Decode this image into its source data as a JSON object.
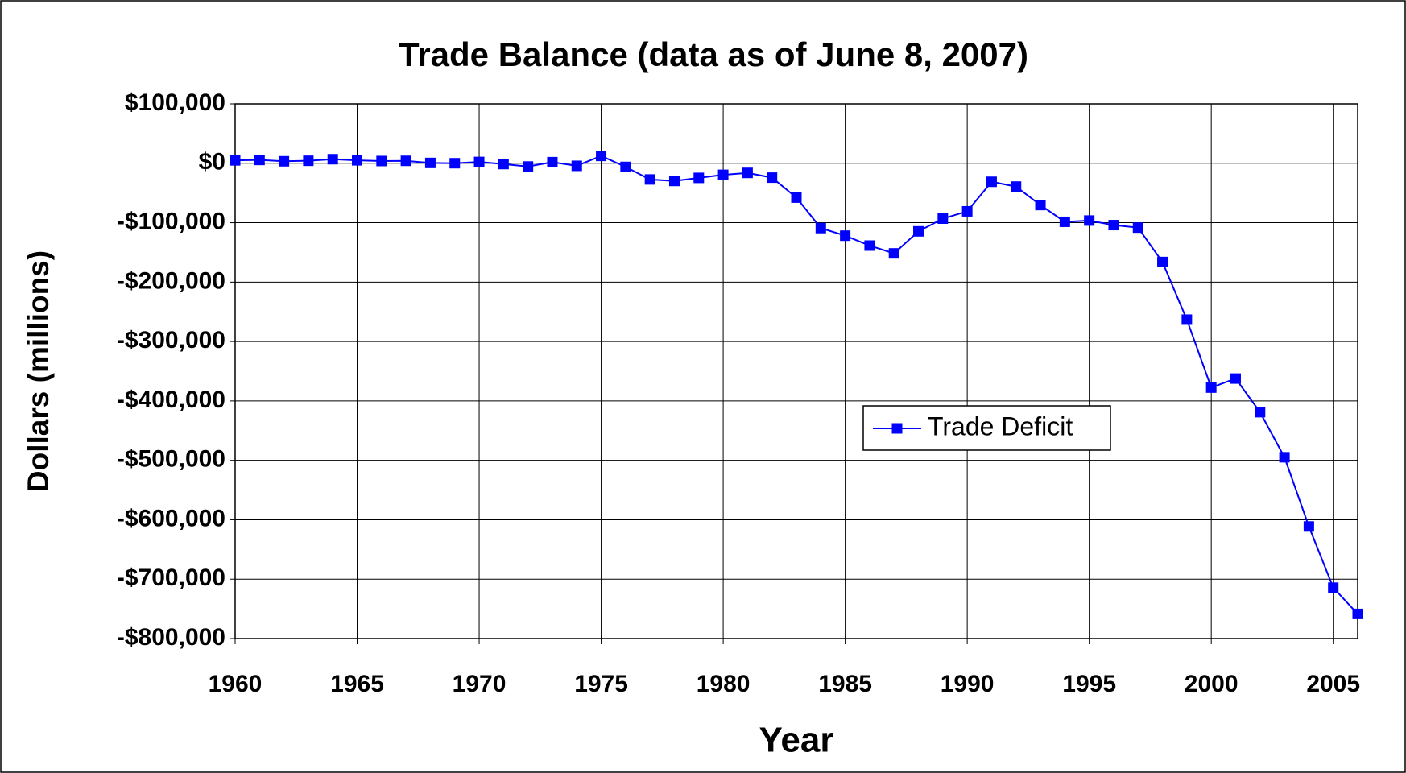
{
  "chart_data": {
    "type": "line",
    "title": "Trade Balance (data as of June 8, 2007)",
    "x_label": "Year",
    "y_label": "Dollars (millions)",
    "x": [
      1960,
      1961,
      1962,
      1963,
      1964,
      1965,
      1966,
      1967,
      1968,
      1969,
      1970,
      1971,
      1972,
      1973,
      1974,
      1975,
      1976,
      1977,
      1978,
      1979,
      1980,
      1981,
      1982,
      1983,
      1984,
      1985,
      1986,
      1987,
      1988,
      1989,
      1990,
      1991,
      1992,
      1993,
      1994,
      1995,
      1996,
      1997,
      1998,
      1999,
      2000,
      2001,
      2002,
      2003,
      2004,
      2005,
      2006
    ],
    "series": [
      {
        "name": "Trade Deficit",
        "color": "#0000ff",
        "values": [
          4892,
          5571,
          3387,
          4214,
          6831,
          4951,
          3817,
          4122,
          601,
          91,
          2254,
          -1303,
          -5443,
          1900,
          -4293,
          12404,
          -6082,
          -27246,
          -29763,
          -24565,
          -19407,
          -16172,
          -24156,
          -57767,
          -109072,
          -121880,
          -138538,
          -151684,
          -114566,
          -93141,
          -80864,
          -31135,
          -39212,
          -70311,
          -98493,
          -96384,
          -104065,
          -108273,
          -166140,
          -263160,
          -377559,
          -362339,
          -418955,
          -494814,
          -611296,
          -714371,
          -758522
        ]
      }
    ],
    "xlim": [
      1960,
      2006
    ],
    "xticks": [
      1960,
      1965,
      1970,
      1975,
      1980,
      1985,
      1990,
      1995,
      2000,
      2005
    ],
    "ylim": [
      -800000,
      100000
    ],
    "yticks": [
      {
        "value": -800000,
        "label": "-$800,000"
      },
      {
        "value": -700000,
        "label": "-$700,000"
      },
      {
        "value": -600000,
        "label": "-$600,000"
      },
      {
        "value": -500000,
        "label": "-$500,000"
      },
      {
        "value": -400000,
        "label": "-$400,000"
      },
      {
        "value": -300000,
        "label": "-$300,000"
      },
      {
        "value": -200000,
        "label": "-$200,000"
      },
      {
        "value": -100000,
        "label": "-$100,000"
      },
      {
        "value": 0,
        "label": "$0"
      },
      {
        "value": 100000,
        "label": "$100,000"
      }
    ],
    "grid": true,
    "legend": "right"
  }
}
